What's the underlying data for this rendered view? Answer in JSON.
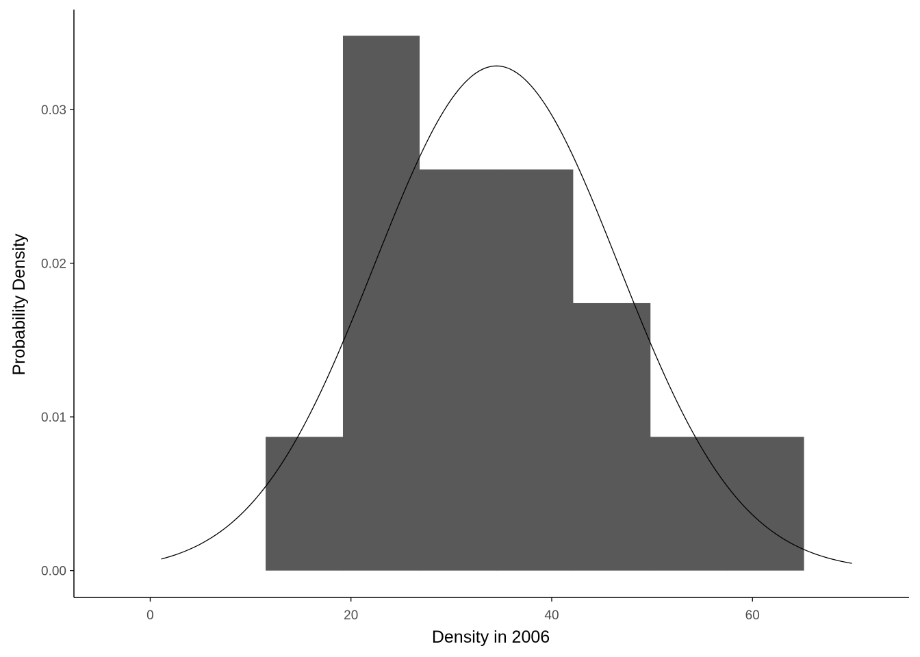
{
  "chart_data": {
    "type": "bar",
    "subtype": "histogram-with-normal-curve",
    "xlabel": "Density in 2006",
    "ylabel": "Probability Density",
    "xlim": [
      -7.6,
      75.6
    ],
    "ylim": [
      -0.00175,
      0.0365
    ],
    "x_ticks": [
      0,
      20,
      40,
      60
    ],
    "x_tick_labels": [
      "0",
      "20",
      "40",
      "60"
    ],
    "y_ticks": [
      0.0,
      0.01,
      0.02,
      0.03
    ],
    "y_tick_labels": [
      "0.00",
      "0.01",
      "0.02",
      "0.03"
    ],
    "bins": [
      {
        "x0": 11.5,
        "x1": 19.2,
        "density": 0.0087
      },
      {
        "x0": 19.2,
        "x1": 26.8,
        "density": 0.0348
      },
      {
        "x0": 26.8,
        "x1": 34.5,
        "density": 0.0261
      },
      {
        "x0": 34.5,
        "x1": 42.1,
        "density": 0.0261
      },
      {
        "x0": 42.1,
        "x1": 49.8,
        "density": 0.0174
      },
      {
        "x0": 49.8,
        "x1": 57.5,
        "density": 0.0087
      },
      {
        "x0": 57.5,
        "x1": 65.1,
        "density": 0.0087
      }
    ],
    "normal_curve": {
      "mean": 34.5,
      "sd": 12.15,
      "x_range": [
        1.1,
        69.9
      ]
    },
    "grid": false,
    "legend": "none",
    "colors": {
      "bars": "#595959",
      "curve": "#000000",
      "axis": "#000000",
      "tick_labels": "#4d4d4d"
    }
  }
}
